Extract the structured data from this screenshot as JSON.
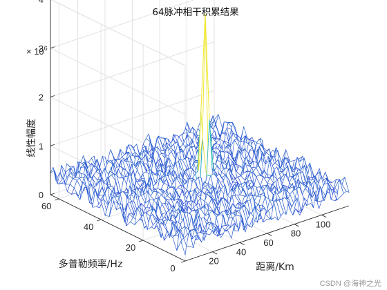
{
  "chart_data": {
    "type": "surface",
    "title": "64脉冲相干积累结果",
    "xlabel": "距离/Km",
    "ylabel": "多普勒频率/Hz",
    "zlabel": "线性幅度",
    "z_exponent_label": "× 10",
    "z_exponent_power": "6",
    "xlim": [
      0,
      120
    ],
    "ylim": [
      0,
      64
    ],
    "zlim": [
      0,
      4000000
    ],
    "xticks": [
      "20",
      "40",
      "60",
      "80",
      "100"
    ],
    "yticks": [
      "0",
      "20",
      "40",
      "60"
    ],
    "zticks": [
      "0",
      "1",
      "2",
      "3",
      "4"
    ],
    "grid": true,
    "peak": {
      "x": 64,
      "y": 32,
      "z": 3900000
    },
    "noise_floor_mean": 350000,
    "noise_floor_max": 700000,
    "colors": {
      "low": "#3a2fd6",
      "mid": "#1fb3c8",
      "high": "#f2e829",
      "axis": "#262626",
      "grid": "#dcdcdc"
    }
  },
  "watermark": "CSDN @海神之光"
}
